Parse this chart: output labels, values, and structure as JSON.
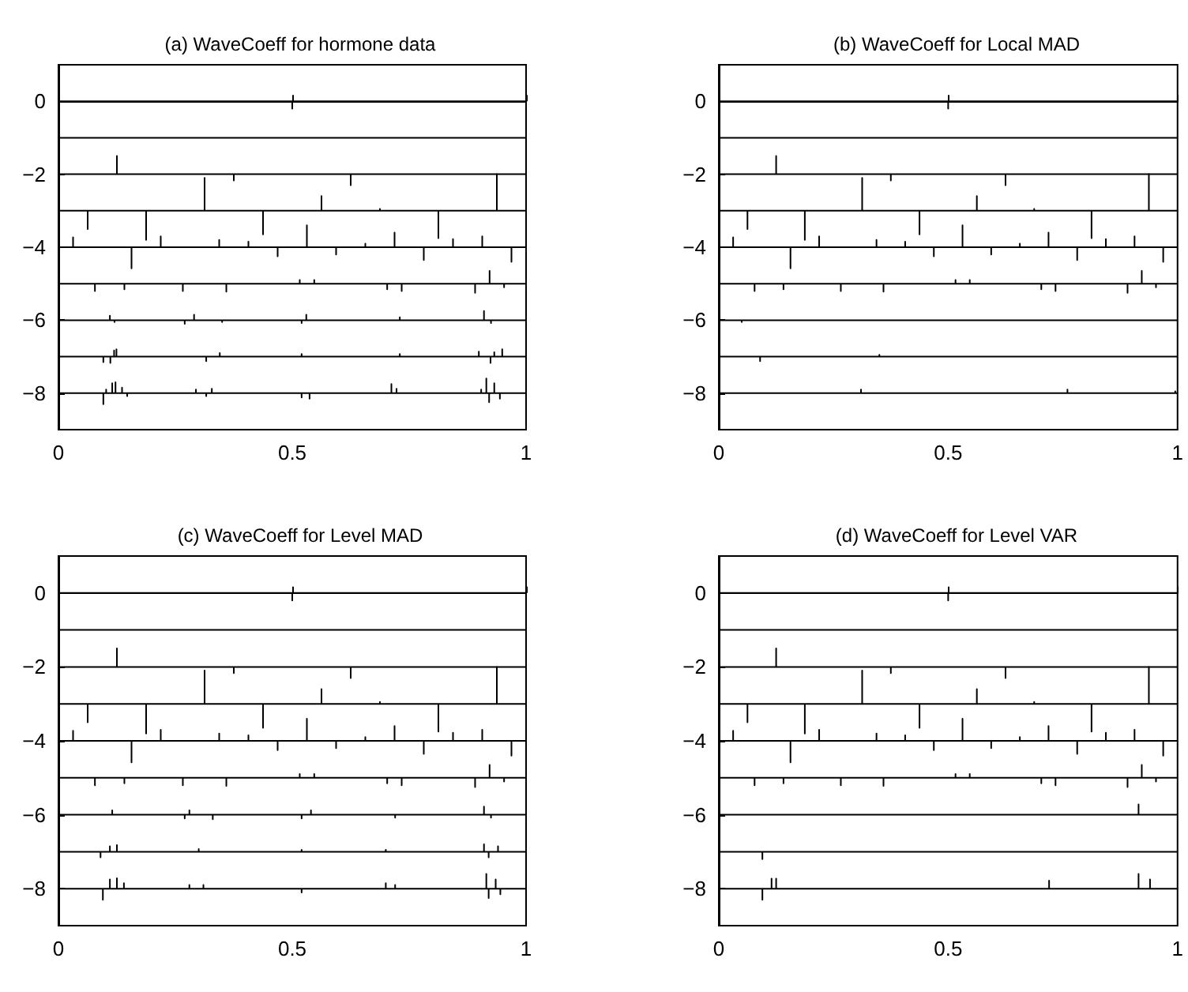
{
  "chart_data": [
    {
      "type": "line",
      "title": "(a) WaveCoeff for hormone data",
      "xlim": [
        0,
        1
      ],
      "xticks": [
        0,
        0.5,
        1
      ],
      "ylim": [
        -9,
        1
      ],
      "yticks": [
        -8,
        -6,
        -4,
        -2,
        0
      ],
      "series": [
        {
          "color": "#000000",
          "x": [
            0,
            0.5,
            0.5,
            0.5,
            1
          ],
          "values": [
            0,
            0,
            -0.2,
            0,
            0
          ]
        },
        {
          "color": "#000000",
          "x": [
            0,
            0.25,
            0.25,
            0.25,
            0.75,
            0.75,
            0.75,
            1
          ],
          "values": [
            -1,
            -1,
            -0.97,
            -1,
            -1,
            -0.97,
            -1,
            -1
          ]
        },
        {
          "color": "#000000",
          "x": [
            0,
            0.125,
            0.125,
            0.125,
            0.375,
            0.375,
            0.375,
            0.625,
            0.625,
            0.625,
            0.875,
            0.875,
            0.875,
            1
          ],
          "values": [
            -2,
            -2,
            -1.5,
            -2,
            -2,
            -2.17,
            -2,
            -2,
            -2.3,
            -2,
            -2,
            -1.97,
            -2,
            -2
          ]
        },
        {
          "color": "#000000",
          "x": [
            0,
            0.0625,
            0.0625,
            0.0625,
            0.1875,
            0.1875,
            0.1875,
            0.3125,
            0.3125,
            0.3125,
            0.4375,
            0.4375,
            0.4375,
            0.5625,
            0.5625,
            0.5625,
            0.6875,
            0.6875,
            0.6875,
            0.8125,
            0.8125,
            0.8125,
            0.9375,
            0.9375,
            0.9375,
            1
          ],
          "values": [
            -3,
            -3,
            -3.5,
            -3,
            -3,
            -3.8,
            -3,
            -3,
            -2.1,
            -3,
            -3,
            -3.65,
            -3,
            -3,
            -2.6,
            -3,
            -3,
            -2.95,
            -3,
            -3,
            -3.75,
            -3,
            -3,
            -2,
            -3,
            -3
          ]
        },
        {
          "color": "#000000",
          "x": [
            0,
            0.03125,
            0.03125,
            0.03125,
            0.15625,
            0.15625,
            0.15625,
            0.21875,
            0.21875,
            0.21875,
            0.34375,
            0.34375,
            0.34375,
            0.40625,
            0.40625,
            0.40625,
            0.46875,
            0.46875,
            0.46875,
            0.53125,
            0.53125,
            0.53125,
            0.59375,
            0.59375,
            0.59375,
            0.65625,
            0.65625,
            0.65625,
            0.71875,
            0.71875,
            0.71875,
            0.78125,
            0.78125,
            0.78125,
            0.84375,
            0.84375,
            0.84375,
            0.90625,
            0.90625,
            0.90625,
            0.96875,
            0.96875,
            0.96875,
            1
          ],
          "values": [
            -4,
            -4,
            -3.73,
            -4,
            -4,
            -4.58,
            -4,
            -4,
            -3.7,
            -4,
            -4,
            -3.8,
            -4,
            -4,
            -3.85,
            -4,
            -4,
            -4.25,
            -4,
            -4,
            -3.4,
            -4,
            -4,
            -4.2,
            -4,
            -4,
            -3.9,
            -4,
            -4,
            -3.6,
            -4,
            -4,
            -4.35,
            -4,
            -4,
            -3.78,
            -4,
            -4,
            -3.7,
            -4,
            -4,
            -4.4,
            -4,
            -4
          ]
        },
        {
          "color": "#000000",
          "x": [
            0,
            0.078,
            0.078,
            0.078,
            0.141,
            0.141,
            0.141,
            0.266,
            0.266,
            0.266,
            0.359,
            0.359,
            0.359,
            0.516,
            0.516,
            0.516,
            0.547,
            0.547,
            0.547,
            0.703,
            0.703,
            0.703,
            0.734,
            0.734,
            0.734,
            0.891,
            0.891,
            0.891,
            0.922,
            0.922,
            0.922,
            0.953,
            0.953,
            0.953,
            1
          ],
          "values": [
            -5,
            -5,
            -5.2,
            -5,
            -5,
            -5.15,
            -5,
            -5,
            -5.2,
            -5,
            -5,
            -5.22,
            -5,
            -5,
            -4.9,
            -5,
            -5,
            -4.9,
            -5,
            -5,
            -5.15,
            -5,
            -5,
            -5.2,
            -5,
            -5,
            -5.25,
            -5,
            -5,
            -4.65,
            -5,
            -5,
            -5.1,
            -5,
            -5
          ]
        },
        {
          "color": "#000000",
          "x": [
            0,
            0.11,
            0.11,
            0.11,
            0.12,
            0.12,
            0.12,
            0.27,
            0.27,
            0.27,
            0.29,
            0.29,
            0.29,
            0.35,
            0.35,
            0.35,
            0.52,
            0.52,
            0.52,
            0.53,
            0.53,
            0.53,
            0.73,
            0.73,
            0.73,
            0.91,
            0.91,
            0.91,
            0.925,
            0.925,
            0.925,
            1
          ],
          "values": [
            -6,
            -6,
            -5.88,
            -6,
            -6,
            -6.05,
            -6,
            -6,
            -6.1,
            -6,
            -6,
            -5.85,
            -6,
            -6,
            -6.05,
            -6,
            -6,
            -6.08,
            -6,
            -6,
            -5.85,
            -6,
            -6,
            -5.92,
            -6,
            -6,
            -5.75,
            -6,
            -6,
            -6.08,
            -6,
            -6
          ]
        },
        {
          "color": "#000000",
          "x": [
            0,
            0.096,
            0.096,
            0.096,
            0.111,
            0.111,
            0.111,
            0.119,
            0.119,
            0.119,
            0.124,
            0.124,
            0.124,
            0.316,
            0.316,
            0.316,
            0.345,
            0.345,
            0.345,
            0.52,
            0.52,
            0.52,
            0.73,
            0.73,
            0.73,
            0.899,
            0.899,
            0.899,
            0.924,
            0.924,
            0.924,
            0.932,
            0.932,
            0.932,
            0.949,
            0.949,
            0.949,
            1
          ],
          "values": [
            -7,
            -7,
            -7.15,
            -7,
            -7,
            -7.17,
            -7,
            -7,
            -6.83,
            -7,
            -7,
            -6.8,
            -7,
            -7,
            -7.12,
            -7,
            -7,
            -6.9,
            -7,
            -7,
            -6.93,
            -7,
            -7,
            -6.93,
            -7,
            -7,
            -6.86,
            -7,
            -7,
            -7.17,
            -7,
            -7,
            -6.88,
            -7,
            -7,
            -6.8,
            -7,
            -7
          ]
        },
        {
          "color": "#000000",
          "x": [
            0,
            0.096,
            0.096,
            0.096,
            0.102,
            0.102,
            0.102,
            0.115,
            0.115,
            0.115,
            0.122,
            0.122,
            0.122,
            0.136,
            0.136,
            0.136,
            0.147,
            0.147,
            0.147,
            0.294,
            0.294,
            0.294,
            0.316,
            0.316,
            0.316,
            0.328,
            0.328,
            0.328,
            0.52,
            0.52,
            0.52,
            0.537,
            0.537,
            0.537,
            0.712,
            0.712,
            0.712,
            0.723,
            0.723,
            0.723,
            0.904,
            0.904,
            0.904,
            0.915,
            0.915,
            0.915,
            0.921,
            0.921,
            0.921,
            0.932,
            0.932,
            0.932,
            0.944,
            0.944,
            0.944,
            1
          ],
          "values": [
            -8,
            -8,
            -8.3,
            -8,
            -8,
            -7.9,
            -8,
            -8,
            -7.73,
            -8,
            -8,
            -7.7,
            -8,
            -8,
            -7.85,
            -8,
            -8,
            -8.08,
            -8,
            -8,
            -7.9,
            -8,
            -8,
            -8.08,
            -8,
            -8,
            -7.88,
            -8,
            -8,
            -8.12,
            -8,
            -8,
            -8.15,
            -8,
            -8,
            -7.75,
            -8,
            -8,
            -7.88,
            -8,
            -8,
            -7.9,
            -8,
            -8,
            -7.6,
            -8,
            -8,
            -8.25,
            -8,
            -8,
            -7.73,
            -8,
            -8,
            -8.15,
            -8,
            -8
          ]
        }
      ]
    },
    {
      "type": "line",
      "title": "(b) WaveCoeff for Local MAD",
      "xlim": [
        0,
        1
      ],
      "xticks": [
        0,
        0.5,
        1
      ],
      "ylim": [
        -9,
        1
      ],
      "yticks": [
        -8,
        -6,
        -4,
        -2,
        0
      ],
      "series": [
        {
          "color": "#000000",
          "x": [
            0,
            0.5,
            0.5,
            0.5,
            1
          ],
          "values": [
            0,
            0,
            -0.2,
            0,
            0
          ]
        },
        {
          "color": "#000000",
          "x": [
            0,
            0.25,
            0.25,
            0.25,
            0.75,
            0.75,
            0.75,
            1
          ],
          "values": [
            -1,
            -1,
            -0.97,
            -1,
            -1,
            -0.97,
            -1,
            -1
          ]
        },
        {
          "color": "#000000",
          "x": [
            0,
            0.125,
            0.125,
            0.125,
            0.375,
            0.375,
            0.375,
            0.625,
            0.625,
            0.625,
            0.875,
            0.875,
            0.875,
            1
          ],
          "values": [
            -2,
            -2,
            -1.5,
            -2,
            -2,
            -2.17,
            -2,
            -2,
            -2.3,
            -2,
            -2,
            -1.97,
            -2,
            -2
          ]
        },
        {
          "color": "#000000",
          "x": [
            0,
            0.0625,
            0.0625,
            0.0625,
            0.1875,
            0.1875,
            0.1875,
            0.3125,
            0.3125,
            0.3125,
            0.4375,
            0.4375,
            0.4375,
            0.5625,
            0.5625,
            0.5625,
            0.6875,
            0.6875,
            0.6875,
            0.8125,
            0.8125,
            0.8125,
            0.9375,
            0.9375,
            0.9375,
            1
          ],
          "values": [
            -3,
            -3,
            -3.5,
            -3,
            -3,
            -3.8,
            -3,
            -3,
            -2.1,
            -3,
            -3,
            -3.65,
            -3,
            -3,
            -2.6,
            -3,
            -3,
            -2.95,
            -3,
            -3,
            -3.75,
            -3,
            -3,
            -2,
            -3,
            -3
          ]
        },
        {
          "color": "#000000",
          "x": [
            0,
            0.03125,
            0.03125,
            0.03125,
            0.15625,
            0.15625,
            0.15625,
            0.21875,
            0.21875,
            0.21875,
            0.34375,
            0.34375,
            0.34375,
            0.40625,
            0.40625,
            0.40625,
            0.46875,
            0.46875,
            0.46875,
            0.53125,
            0.53125,
            0.53125,
            0.59375,
            0.59375,
            0.59375,
            0.65625,
            0.65625,
            0.65625,
            0.71875,
            0.71875,
            0.71875,
            0.78125,
            0.78125,
            0.78125,
            0.84375,
            0.84375,
            0.84375,
            0.90625,
            0.90625,
            0.90625,
            0.96875,
            0.96875,
            0.96875,
            1
          ],
          "values": [
            -4,
            -4,
            -3.73,
            -4,
            -4,
            -4.58,
            -4,
            -4,
            -3.7,
            -4,
            -4,
            -3.8,
            -4,
            -4,
            -3.85,
            -4,
            -4,
            -4.25,
            -4,
            -4,
            -3.4,
            -4,
            -4,
            -4.2,
            -4,
            -4,
            -3.9,
            -4,
            -4,
            -3.6,
            -4,
            -4,
            -4.35,
            -4,
            -4,
            -3.78,
            -4,
            -4,
            -3.7,
            -4,
            -4,
            -4.4,
            -4,
            -4
          ]
        },
        {
          "color": "#000000",
          "x": [
            0,
            0.078,
            0.078,
            0.078,
            0.141,
            0.141,
            0.141,
            0.266,
            0.266,
            0.266,
            0.359,
            0.359,
            0.359,
            0.516,
            0.516,
            0.516,
            0.547,
            0.547,
            0.547,
            0.703,
            0.703,
            0.703,
            0.734,
            0.734,
            0.734,
            0.891,
            0.891,
            0.891,
            0.922,
            0.922,
            0.922,
            0.953,
            0.953,
            0.953,
            1
          ],
          "values": [
            -5,
            -5,
            -5.2,
            -5,
            -5,
            -5.15,
            -5,
            -5,
            -5.2,
            -5,
            -5,
            -5.22,
            -5,
            -5,
            -4.9,
            -5,
            -5,
            -4.9,
            -5,
            -5,
            -5.15,
            -5,
            -5,
            -5.2,
            -5,
            -5,
            -5.25,
            -5,
            -5,
            -4.65,
            -5,
            -5,
            -5.1,
            -5,
            -5
          ]
        },
        {
          "color": "#000000",
          "x": [
            0,
            0.05,
            0.05,
            0.05,
            0.38,
            0.38,
            0.38,
            0.875,
            0.875,
            0.875,
            1
          ],
          "values": [
            -6,
            -6,
            -6.05,
            -6,
            -6,
            -5.97,
            -6,
            -6,
            -5.97,
            -6,
            -6
          ]
        },
        {
          "color": "#000000",
          "x": [
            0,
            0.09,
            0.09,
            0.09,
            0.35,
            0.35,
            0.35,
            0.65,
            0.65,
            0.65,
            1
          ],
          "values": [
            -7,
            -7,
            -7.12,
            -7,
            -7,
            -6.95,
            -7,
            -7,
            -6.98,
            -7,
            -7
          ]
        },
        {
          "color": "#000000",
          "x": [
            0,
            0.31,
            0.31,
            0.31,
            0.76,
            0.76,
            0.76,
            0.995,
            0.995,
            0.995,
            1
          ],
          "values": [
            -8,
            -8,
            -7.9,
            -8,
            -8,
            -7.9,
            -8,
            -8,
            -7.95,
            -8,
            -8
          ]
        }
      ]
    },
    {
      "type": "line",
      "title": "(c) WaveCoeff for Level MAD",
      "xlim": [
        0,
        1
      ],
      "xticks": [
        0,
        0.5,
        1
      ],
      "ylim": [
        -9,
        1
      ],
      "yticks": [
        -8,
        -6,
        -4,
        -2,
        0
      ],
      "series": [
        {
          "color": "#000000",
          "x": [
            0,
            0.5,
            0.5,
            0.5,
            1
          ],
          "values": [
            0,
            0,
            -0.2,
            0,
            0
          ]
        },
        {
          "color": "#000000",
          "x": [
            0,
            0.25,
            0.25,
            0.25,
            0.75,
            0.75,
            0.75,
            1
          ],
          "values": [
            -1,
            -1,
            -0.97,
            -1,
            -1,
            -0.97,
            -1,
            -1
          ]
        },
        {
          "color": "#000000",
          "x": [
            0,
            0.125,
            0.125,
            0.125,
            0.375,
            0.375,
            0.375,
            0.625,
            0.625,
            0.625,
            0.875,
            0.875,
            0.875,
            1
          ],
          "values": [
            -2,
            -2,
            -1.5,
            -2,
            -2,
            -2.17,
            -2,
            -2,
            -2.3,
            -2,
            -2,
            -1.97,
            -2,
            -2
          ]
        },
        {
          "color": "#000000",
          "x": [
            0,
            0.0625,
            0.0625,
            0.0625,
            0.1875,
            0.1875,
            0.1875,
            0.3125,
            0.3125,
            0.3125,
            0.4375,
            0.4375,
            0.4375,
            0.5625,
            0.5625,
            0.5625,
            0.6875,
            0.6875,
            0.6875,
            0.8125,
            0.8125,
            0.8125,
            0.9375,
            0.9375,
            0.9375,
            1
          ],
          "values": [
            -3,
            -3,
            -3.5,
            -3,
            -3,
            -3.8,
            -3,
            -3,
            -2.1,
            -3,
            -3,
            -3.65,
            -3,
            -3,
            -2.6,
            -3,
            -3,
            -2.95,
            -3,
            -3,
            -3.75,
            -3,
            -3,
            -2,
            -3,
            -3
          ]
        },
        {
          "color": "#000000",
          "x": [
            0,
            0.03125,
            0.03125,
            0.03125,
            0.15625,
            0.15625,
            0.15625,
            0.21875,
            0.21875,
            0.21875,
            0.34375,
            0.34375,
            0.34375,
            0.40625,
            0.40625,
            0.40625,
            0.46875,
            0.46875,
            0.46875,
            0.53125,
            0.53125,
            0.53125,
            0.59375,
            0.59375,
            0.59375,
            0.65625,
            0.65625,
            0.65625,
            0.71875,
            0.71875,
            0.71875,
            0.78125,
            0.78125,
            0.78125,
            0.84375,
            0.84375,
            0.84375,
            0.90625,
            0.90625,
            0.90625,
            0.96875,
            0.96875,
            0.96875,
            1
          ],
          "values": [
            -4,
            -4,
            -3.73,
            -4,
            -4,
            -4.58,
            -4,
            -4,
            -3.7,
            -4,
            -4,
            -3.8,
            -4,
            -4,
            -3.85,
            -4,
            -4,
            -4.25,
            -4,
            -4,
            -3.4,
            -4,
            -4,
            -4.2,
            -4,
            -4,
            -3.9,
            -4,
            -4,
            -3.6,
            -4,
            -4,
            -4.35,
            -4,
            -4,
            -3.78,
            -4,
            -4,
            -3.7,
            -4,
            -4,
            -4.4,
            -4,
            -4
          ]
        },
        {
          "color": "#000000",
          "x": [
            0,
            0.078,
            0.078,
            0.078,
            0.141,
            0.141,
            0.141,
            0.266,
            0.266,
            0.266,
            0.359,
            0.359,
            0.359,
            0.516,
            0.516,
            0.516,
            0.547,
            0.547,
            0.547,
            0.703,
            0.703,
            0.703,
            0.734,
            0.734,
            0.734,
            0.891,
            0.891,
            0.891,
            0.922,
            0.922,
            0.922,
            0.953,
            0.953,
            0.953,
            1
          ],
          "values": [
            -5,
            -5,
            -5.2,
            -5,
            -5,
            -5.15,
            -5,
            -5,
            -5.2,
            -5,
            -5,
            -5.22,
            -5,
            -5,
            -4.9,
            -5,
            -5,
            -4.9,
            -5,
            -5,
            -5.15,
            -5,
            -5,
            -5.2,
            -5,
            -5,
            -5.25,
            -5,
            -5,
            -4.65,
            -5,
            -5,
            -5.1,
            -5,
            -5
          ]
        },
        {
          "color": "#000000",
          "x": [
            0,
            0.115,
            0.115,
            0.115,
            0.27,
            0.27,
            0.27,
            0.28,
            0.28,
            0.28,
            0.33,
            0.33,
            0.33,
            0.52,
            0.52,
            0.52,
            0.54,
            0.54,
            0.54,
            0.72,
            0.72,
            0.72,
            0.91,
            0.91,
            0.91,
            0.925,
            0.925,
            0.925,
            1
          ],
          "values": [
            -6,
            -6,
            -5.88,
            -6,
            -6,
            -6.1,
            -6,
            -6,
            -5.88,
            -6,
            -6,
            -6.12,
            -6,
            -6,
            -6.1,
            -6,
            -6,
            -5.88,
            -6,
            -6,
            -6.08,
            -6,
            -6,
            -5.78,
            -6,
            -6,
            -6.08,
            -6,
            -6
          ]
        },
        {
          "color": "#000000",
          "x": [
            0,
            0.09,
            0.09,
            0.09,
            0.11,
            0.11,
            0.11,
            0.125,
            0.125,
            0.125,
            0.3,
            0.3,
            0.3,
            0.52,
            0.52,
            0.52,
            0.7,
            0.7,
            0.7,
            0.91,
            0.91,
            0.91,
            0.92,
            0.92,
            0.92,
            0.94,
            0.94,
            0.94,
            1
          ],
          "values": [
            -7,
            -7,
            -7.15,
            -7,
            -7,
            -6.85,
            -7,
            -7,
            -6.82,
            -7,
            -7,
            -6.93,
            -7,
            -7,
            -6.95,
            -7,
            -7,
            -6.95,
            -7,
            -7,
            -6.8,
            -7,
            -7,
            -7.15,
            -7,
            -7,
            -6.85,
            -7,
            -7
          ]
        },
        {
          "color": "#000000",
          "x": [
            0,
            0.095,
            0.095,
            0.095,
            0.11,
            0.11,
            0.11,
            0.125,
            0.125,
            0.125,
            0.14,
            0.14,
            0.14,
            0.28,
            0.28,
            0.28,
            0.31,
            0.31,
            0.31,
            0.52,
            0.52,
            0.52,
            0.7,
            0.7,
            0.7,
            0.72,
            0.72,
            0.72,
            0.915,
            0.915,
            0.915,
            0.92,
            0.92,
            0.92,
            0.935,
            0.935,
            0.935,
            0.945,
            0.945,
            0.945,
            1
          ],
          "values": [
            -8,
            -8,
            -8.3,
            -8,
            -8,
            -7.75,
            -8,
            -8,
            -7.72,
            -8,
            -8,
            -7.85,
            -8,
            -8,
            -7.9,
            -8,
            -8,
            -7.9,
            -8,
            -8,
            -8.1,
            -8,
            -8,
            -7.85,
            -8,
            -8,
            -7.9,
            -8,
            -8,
            -7.6,
            -8,
            -8,
            -8.25,
            -8,
            -8,
            -7.75,
            -8,
            -8,
            -8.15,
            -8,
            -8
          ]
        }
      ]
    },
    {
      "type": "line",
      "title": "(d) WaveCoeff for Level VAR",
      "xlim": [
        0,
        1
      ],
      "xticks": [
        0,
        0.5,
        1
      ],
      "ylim": [
        -9,
        1
      ],
      "yticks": [
        -8,
        -6,
        -4,
        -2,
        0
      ],
      "series": [
        {
          "color": "#000000",
          "x": [
            0,
            0.5,
            0.5,
            0.5,
            1
          ],
          "values": [
            0,
            0,
            -0.2,
            0,
            0
          ]
        },
        {
          "color": "#000000",
          "x": [
            0,
            0.25,
            0.25,
            0.25,
            0.75,
            0.75,
            0.75,
            1
          ],
          "values": [
            -1,
            -1,
            -0.97,
            -1,
            -1,
            -0.97,
            -1,
            -1
          ]
        },
        {
          "color": "#000000",
          "x": [
            0,
            0.125,
            0.125,
            0.125,
            0.375,
            0.375,
            0.375,
            0.625,
            0.625,
            0.625,
            0.875,
            0.875,
            0.875,
            1
          ],
          "values": [
            -2,
            -2,
            -1.5,
            -2,
            -2,
            -2.17,
            -2,
            -2,
            -2.3,
            -2,
            -2,
            -1.97,
            -2,
            -2
          ]
        },
        {
          "color": "#000000",
          "x": [
            0,
            0.0625,
            0.0625,
            0.0625,
            0.1875,
            0.1875,
            0.1875,
            0.3125,
            0.3125,
            0.3125,
            0.4375,
            0.4375,
            0.4375,
            0.5625,
            0.5625,
            0.5625,
            0.6875,
            0.6875,
            0.6875,
            0.8125,
            0.8125,
            0.8125,
            0.9375,
            0.9375,
            0.9375,
            1
          ],
          "values": [
            -3,
            -3,
            -3.5,
            -3,
            -3,
            -3.8,
            -3,
            -3,
            -2.1,
            -3,
            -3,
            -3.65,
            -3,
            -3,
            -2.6,
            -3,
            -3,
            -2.95,
            -3,
            -3,
            -3.75,
            -3,
            -3,
            -2,
            -3,
            -3
          ]
        },
        {
          "color": "#000000",
          "x": [
            0,
            0.03125,
            0.03125,
            0.03125,
            0.15625,
            0.15625,
            0.15625,
            0.21875,
            0.21875,
            0.21875,
            0.34375,
            0.34375,
            0.34375,
            0.40625,
            0.40625,
            0.40625,
            0.46875,
            0.46875,
            0.46875,
            0.53125,
            0.53125,
            0.53125,
            0.59375,
            0.59375,
            0.59375,
            0.65625,
            0.65625,
            0.65625,
            0.71875,
            0.71875,
            0.71875,
            0.78125,
            0.78125,
            0.78125,
            0.84375,
            0.84375,
            0.84375,
            0.90625,
            0.90625,
            0.90625,
            0.96875,
            0.96875,
            0.96875,
            1
          ],
          "values": [
            -4,
            -4,
            -3.73,
            -4,
            -4,
            -4.58,
            -4,
            -4,
            -3.7,
            -4,
            -4,
            -3.8,
            -4,
            -4,
            -3.85,
            -4,
            -4,
            -4.25,
            -4,
            -4,
            -3.4,
            -4,
            -4,
            -4.2,
            -4,
            -4,
            -3.9,
            -4,
            -4,
            -3.6,
            -4,
            -4,
            -4.35,
            -4,
            -4,
            -3.78,
            -4,
            -4,
            -3.7,
            -4,
            -4,
            -4.4,
            -4,
            -4
          ]
        },
        {
          "color": "#000000",
          "x": [
            0,
            0.078,
            0.078,
            0.078,
            0.141,
            0.141,
            0.141,
            0.266,
            0.266,
            0.266,
            0.359,
            0.359,
            0.359,
            0.516,
            0.516,
            0.516,
            0.547,
            0.547,
            0.547,
            0.703,
            0.703,
            0.703,
            0.734,
            0.734,
            0.734,
            0.891,
            0.891,
            0.891,
            0.922,
            0.922,
            0.922,
            0.953,
            0.953,
            0.953,
            1
          ],
          "values": [
            -5,
            -5,
            -5.2,
            -5,
            -5,
            -5.15,
            -5,
            -5,
            -5.2,
            -5,
            -5,
            -5.22,
            -5,
            -5,
            -4.9,
            -5,
            -5,
            -4.9,
            -5,
            -5,
            -5.15,
            -5,
            -5,
            -5.2,
            -5,
            -5,
            -5.25,
            -5,
            -5,
            -4.65,
            -5,
            -5,
            -5.1,
            -5,
            -5
          ]
        },
        {
          "color": "#000000",
          "x": [
            0,
            0.915,
            0.915,
            0.915,
            1
          ],
          "values": [
            -6,
            -6,
            -5.72,
            -6,
            -6
          ]
        },
        {
          "color": "#000000",
          "x": [
            0,
            0.095,
            0.095,
            0.095,
            1
          ],
          "values": [
            -7,
            -7,
            -7.2,
            -7,
            -7
          ]
        },
        {
          "color": "#000000",
          "x": [
            0,
            0.095,
            0.095,
            0.095,
            0.115,
            0.115,
            0.115,
            0.125,
            0.125,
            0.125,
            0.72,
            0.72,
            0.72,
            0.915,
            0.915,
            0.915,
            0.94,
            0.94,
            0.94,
            1
          ],
          "values": [
            -8,
            -8,
            -8.3,
            -8,
            -8,
            -7.73,
            -8,
            -8,
            -7.73,
            -8,
            -8,
            -7.78,
            -8,
            -8,
            -7.6,
            -8,
            -8,
            -7.75,
            -8,
            -8
          ]
        }
      ]
    }
  ]
}
